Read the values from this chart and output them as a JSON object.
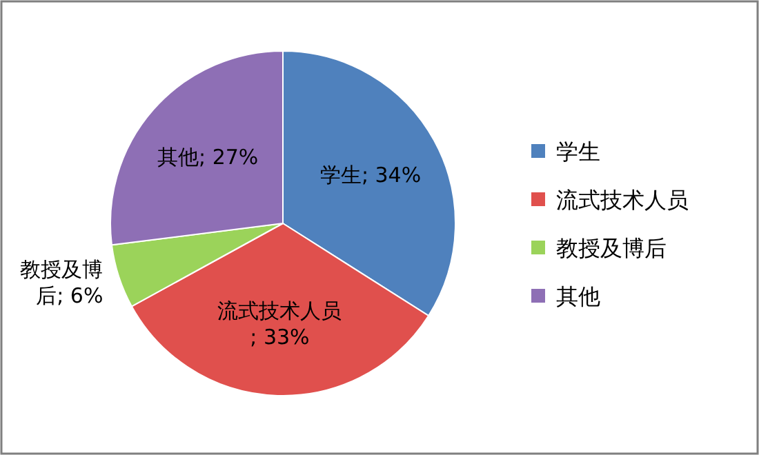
{
  "chart_data": {
    "type": "pie",
    "categories": [
      "学生",
      "流式技术人员",
      "教授及博后",
      "其他"
    ],
    "values": [
      34,
      33,
      6,
      27
    ],
    "colors": [
      "#4f81bd",
      "#e0504d",
      "#9bd35a",
      "#8e6fb5"
    ],
    "value_labels": [
      "学生; 34%",
      "流式技术人员; 33%",
      "教授及博后; 6%",
      "其他; 27%"
    ],
    "legend": "right"
  }
}
